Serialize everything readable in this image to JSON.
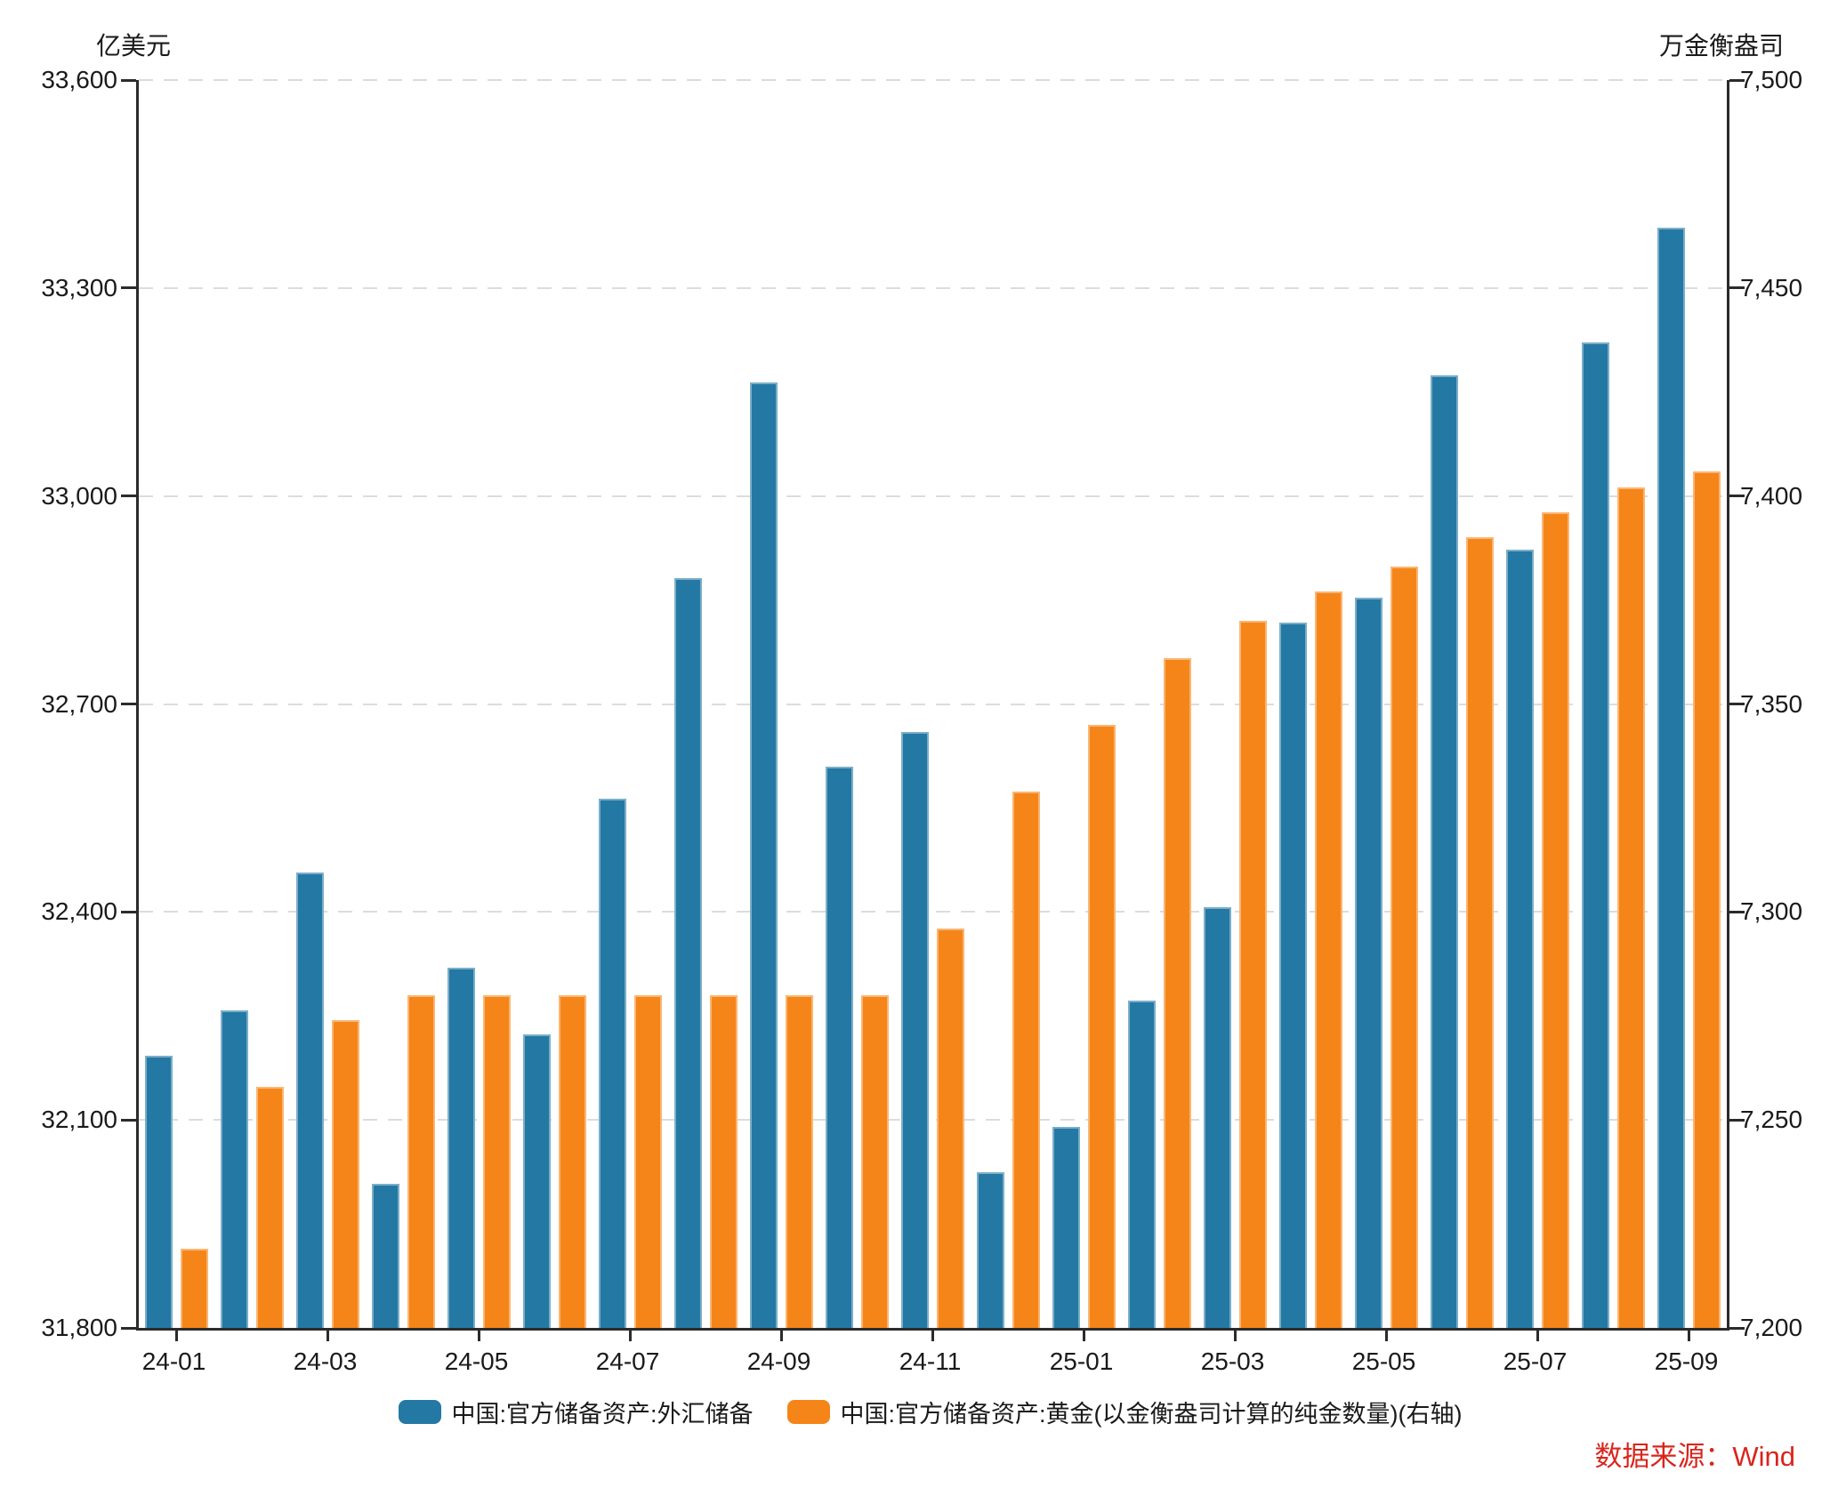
{
  "chart_data": {
    "type": "bar",
    "categories": [
      "24-01",
      "24-02",
      "24-03",
      "24-04",
      "24-05",
      "24-06",
      "24-07",
      "24-08",
      "24-09",
      "24-10",
      "24-11",
      "24-12",
      "25-01",
      "25-02",
      "25-03",
      "25-04",
      "25-05",
      "25-06",
      "25-07",
      "25-08",
      "25-09"
    ],
    "series": [
      {
        "name": "中国:官方储备资产:外汇储备",
        "axis": "left",
        "color": "#2478A4",
        "values": [
          32193,
          32258,
          32457,
          32008,
          32320,
          32224,
          32564,
          32882,
          33164,
          32610,
          32659,
          32024,
          32090,
          32272,
          32407,
          32817,
          32853,
          33174,
          32922,
          33222,
          33387
        ]
      },
      {
        "name": "中国:官方储备资产:黄金(以金衡盎司计算的纯金数量)(右轴)",
        "axis": "right",
        "color": "#F58518",
        "values": [
          7219,
          7258,
          7274,
          7280,
          7280,
          7280,
          7280,
          7280,
          7280,
          7280,
          7296,
          7329,
          7345,
          7361,
          7370,
          7377,
          7383,
          7390,
          7396,
          7402,
          7406
        ]
      }
    ],
    "left_axis": {
      "unit": "亿美元",
      "min": 31800,
      "max": 33600,
      "tick_step": 300,
      "ticks_top_to_bottom": [
        "33,600",
        "33,300",
        "33,000",
        "32,700",
        "32,400",
        "32,100",
        "31,800"
      ]
    },
    "right_axis": {
      "unit": "万金衡盎司",
      "min": 7200,
      "max": 7500,
      "tick_step": 50,
      "ticks_top_to_bottom": [
        "7,500",
        "7,450",
        "7,400",
        "7,350",
        "7,300",
        "7,250",
        "7,200"
      ]
    },
    "x_tick_labels": [
      "24-01",
      "24-03",
      "24-05",
      "24-07",
      "24-09",
      "24-11",
      "25-01",
      "25-03",
      "25-05",
      "25-07",
      "25-09"
    ],
    "x_label_every": 2,
    "grid": "horizontal-dashed",
    "legend_position": "bottom"
  },
  "source_note": "数据来源：Wind",
  "colors": {
    "bar_fx": "#2478A4",
    "bar_gold": "#F58518",
    "gridline": "#DCDCDC",
    "axis": "#2B2B2B",
    "text": "#1A1A1A",
    "source_note": "#D9251D"
  }
}
